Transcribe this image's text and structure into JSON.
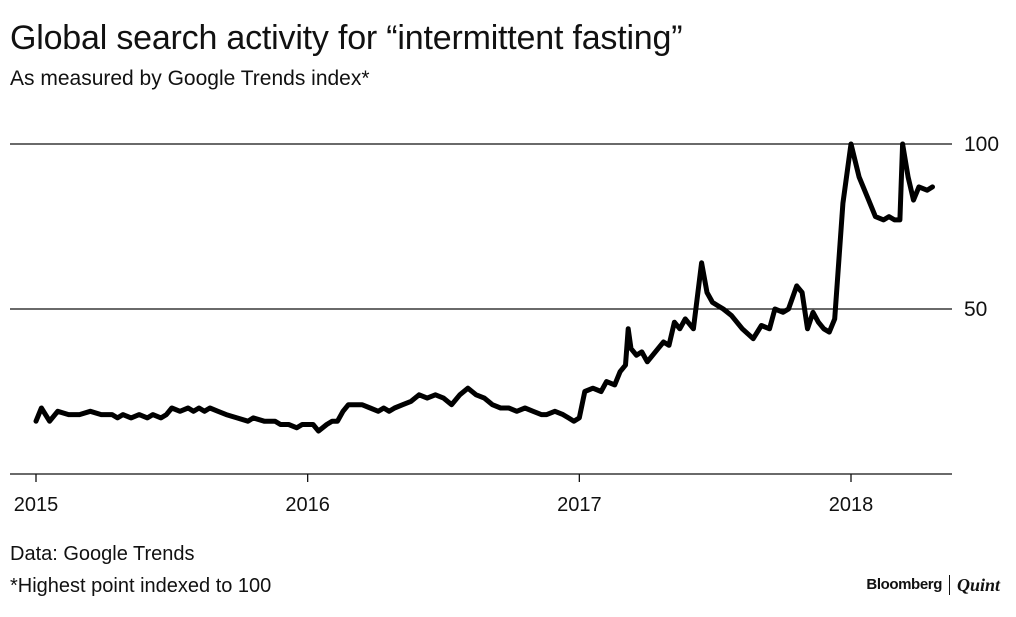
{
  "header": {
    "title": "Global search activity for “intermittent fasting”",
    "subtitle": "As measured by Google Trends index*"
  },
  "footer": {
    "source": "Data: Google Trends",
    "footnote": "*Highest point indexed to 100",
    "brand_primary": "Bloomberg",
    "brand_secondary": "Quint"
  },
  "colors": {
    "line": "#000000",
    "gridline": "#111111",
    "text": "#111111"
  },
  "chart_data": {
    "type": "line",
    "title": "Global search activity for “intermittent fasting”",
    "subtitle": "As measured by Google Trends index*",
    "xlabel": "",
    "ylabel": "",
    "xlim": [
      2015,
      2018.38
    ],
    "ylim": [
      0,
      100
    ],
    "x_ticks": [
      {
        "value": 2015,
        "label": "2015"
      },
      {
        "value": 2016,
        "label": "2016"
      },
      {
        "value": 2017,
        "label": "2017"
      },
      {
        "value": 2018,
        "label": "2018"
      }
    ],
    "y_ticks": [
      {
        "value": 50,
        "label": "50"
      },
      {
        "value": 100,
        "label": "100"
      }
    ],
    "grid": "horizontal",
    "axis_side": "right",
    "series": [
      {
        "name": "intermittent fasting",
        "points": [
          [
            2015.0,
            16
          ],
          [
            2015.02,
            20
          ],
          [
            2015.05,
            16
          ],
          [
            2015.08,
            19
          ],
          [
            2015.12,
            18
          ],
          [
            2015.16,
            18
          ],
          [
            2015.2,
            19
          ],
          [
            2015.24,
            18
          ],
          [
            2015.28,
            18
          ],
          [
            2015.3,
            17
          ],
          [
            2015.32,
            18
          ],
          [
            2015.35,
            17
          ],
          [
            2015.38,
            18
          ],
          [
            2015.41,
            17
          ],
          [
            2015.43,
            18
          ],
          [
            2015.46,
            17
          ],
          [
            2015.48,
            18
          ],
          [
            2015.5,
            20
          ],
          [
            2015.53,
            19
          ],
          [
            2015.56,
            20
          ],
          [
            2015.58,
            19
          ],
          [
            2015.6,
            20
          ],
          [
            2015.62,
            19
          ],
          [
            2015.64,
            20
          ],
          [
            2015.67,
            19
          ],
          [
            2015.7,
            18
          ],
          [
            2015.74,
            17
          ],
          [
            2015.78,
            16
          ],
          [
            2015.8,
            17
          ],
          [
            2015.84,
            16
          ],
          [
            2015.88,
            16
          ],
          [
            2015.9,
            15
          ],
          [
            2015.93,
            15
          ],
          [
            2015.96,
            14
          ],
          [
            2015.98,
            15
          ],
          [
            2016.0,
            15
          ],
          [
            2016.02,
            15
          ],
          [
            2016.04,
            13
          ],
          [
            2016.07,
            15
          ],
          [
            2016.09,
            16
          ],
          [
            2016.11,
            16
          ],
          [
            2016.13,
            19
          ],
          [
            2016.15,
            21
          ],
          [
            2016.18,
            21
          ],
          [
            2016.2,
            21
          ],
          [
            2016.23,
            20
          ],
          [
            2016.26,
            19
          ],
          [
            2016.28,
            20
          ],
          [
            2016.3,
            19
          ],
          [
            2016.32,
            20
          ],
          [
            2016.35,
            21
          ],
          [
            2016.38,
            22
          ],
          [
            2016.41,
            24
          ],
          [
            2016.44,
            23
          ],
          [
            2016.47,
            24
          ],
          [
            2016.5,
            23
          ],
          [
            2016.53,
            21
          ],
          [
            2016.56,
            24
          ],
          [
            2016.59,
            26
          ],
          [
            2016.62,
            24
          ],
          [
            2016.65,
            23
          ],
          [
            2016.68,
            21
          ],
          [
            2016.71,
            20
          ],
          [
            2016.74,
            20
          ],
          [
            2016.77,
            19
          ],
          [
            2016.8,
            20
          ],
          [
            2016.83,
            19
          ],
          [
            2016.86,
            18
          ],
          [
            2016.88,
            18
          ],
          [
            2016.91,
            19
          ],
          [
            2016.94,
            18
          ],
          [
            2016.96,
            17
          ],
          [
            2016.98,
            16
          ],
          [
            2017.0,
            17
          ],
          [
            2017.02,
            25
          ],
          [
            2017.05,
            26
          ],
          [
            2017.08,
            25
          ],
          [
            2017.1,
            28
          ],
          [
            2017.13,
            27
          ],
          [
            2017.15,
            31
          ],
          [
            2017.17,
            33
          ],
          [
            2017.18,
            44
          ],
          [
            2017.19,
            38
          ],
          [
            2017.21,
            36
          ],
          [
            2017.23,
            37
          ],
          [
            2017.25,
            34
          ],
          [
            2017.27,
            36
          ],
          [
            2017.29,
            38
          ],
          [
            2017.31,
            40
          ],
          [
            2017.33,
            39
          ],
          [
            2017.35,
            46
          ],
          [
            2017.37,
            44
          ],
          [
            2017.39,
            47
          ],
          [
            2017.42,
            44
          ],
          [
            2017.45,
            64
          ],
          [
            2017.47,
            55
          ],
          [
            2017.49,
            52
          ],
          [
            2017.51,
            51
          ],
          [
            2017.53,
            50
          ],
          [
            2017.56,
            48
          ],
          [
            2017.6,
            44
          ],
          [
            2017.64,
            41
          ],
          [
            2017.67,
            45
          ],
          [
            2017.7,
            44
          ],
          [
            2017.72,
            50
          ],
          [
            2017.75,
            49
          ],
          [
            2017.77,
            50
          ],
          [
            2017.8,
            57
          ],
          [
            2017.82,
            55
          ],
          [
            2017.84,
            44
          ],
          [
            2017.86,
            49
          ],
          [
            2017.88,
            46
          ],
          [
            2017.9,
            44
          ],
          [
            2017.92,
            43
          ],
          [
            2017.94,
            47
          ],
          [
            2017.97,
            82
          ],
          [
            2018.0,
            100
          ],
          [
            2018.03,
            90
          ],
          [
            2018.06,
            84
          ],
          [
            2018.09,
            78
          ],
          [
            2018.12,
            77
          ],
          [
            2018.14,
            78
          ],
          [
            2018.16,
            77
          ],
          [
            2018.18,
            77
          ],
          [
            2018.19,
            100
          ],
          [
            2018.21,
            90
          ],
          [
            2018.23,
            83
          ],
          [
            2018.25,
            87
          ],
          [
            2018.28,
            86
          ],
          [
            2018.3,
            87
          ]
        ]
      }
    ]
  }
}
